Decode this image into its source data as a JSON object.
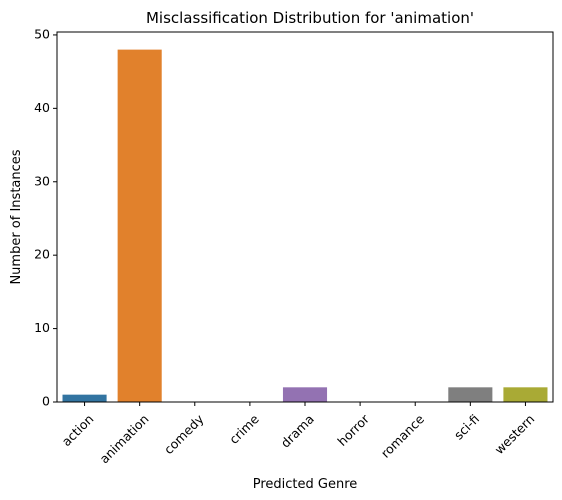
{
  "chart_data": {
    "type": "bar",
    "title": "Misclassification Distribution for 'animation'",
    "xlabel": "Predicted Genre",
    "ylabel": "Number of Instances",
    "categories": [
      "action",
      "animation",
      "comedy",
      "crime",
      "drama",
      "horror",
      "romance",
      "sci-fi",
      "western"
    ],
    "values": [
      1,
      48,
      0,
      0,
      2,
      0,
      0,
      2,
      2
    ],
    "colors": [
      "#3274a1",
      "#e1812c",
      "#3a923a",
      "#c03d3e",
      "#9372b2",
      "#845b53",
      "#d684bd",
      "#7f7f7f",
      "#a9aa35"
    ],
    "ylim": [
      0,
      50.4
    ],
    "yticks": [
      0,
      10,
      20,
      30,
      40,
      50
    ],
    "grid": false,
    "legend": "none"
  }
}
